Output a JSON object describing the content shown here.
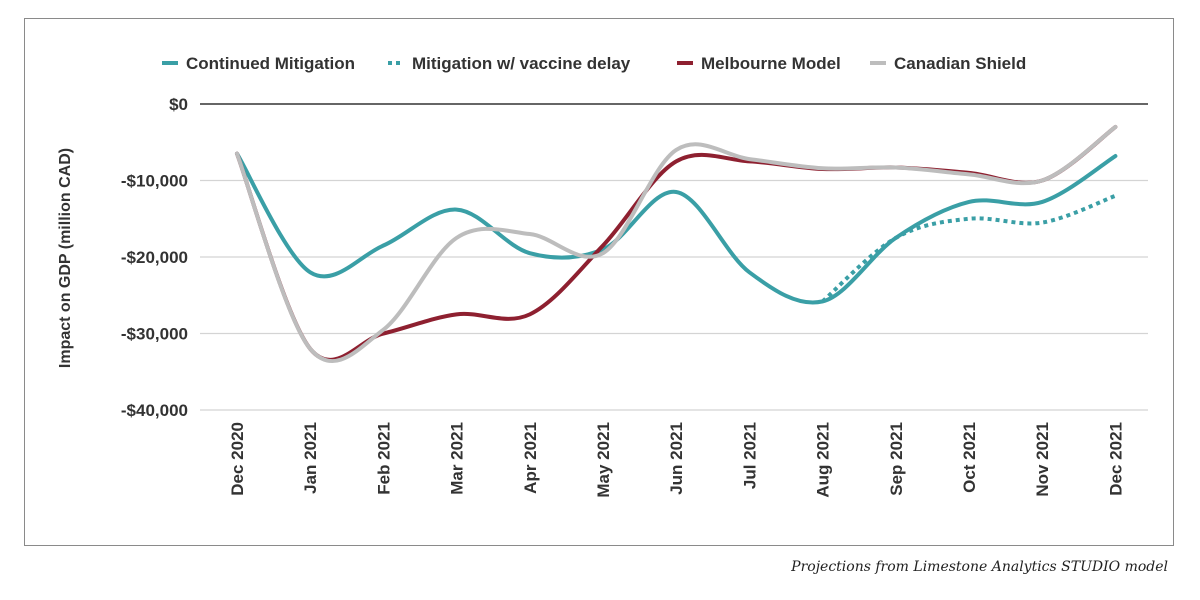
{
  "chart_data": {
    "type": "line",
    "title": "",
    "xlabel": "",
    "ylabel": "Impact on GDP (million CAD)",
    "ylim": [
      -40000,
      0
    ],
    "yticks": [
      0,
      -10000,
      -20000,
      -30000,
      -40000
    ],
    "ytick_labels": [
      "$0",
      "-$10,000",
      "-$20,000",
      "-$30,000",
      "-$40,000"
    ],
    "categories": [
      "Dec 2020",
      "Jan 2021",
      "Feb 2021",
      "Mar 2021",
      "Apr 2021",
      "May 2021",
      "Jun 2021",
      "Jul 2021",
      "Aug 2021",
      "Sep 2021",
      "Oct 2021",
      "Nov 2021",
      "Dec 2021"
    ],
    "legend_position": "top",
    "grid": true,
    "series": [
      {
        "name": "Continued Mitigation",
        "color": "#3a9fa6",
        "style": "solid",
        "values": [
          -6500,
          -22000,
          -18500,
          -13800,
          -19500,
          -19000,
          -11500,
          -22000,
          -25800,
          -17500,
          -12800,
          -12800,
          -6800
        ]
      },
      {
        "name": "Mitigation w/ vaccine delay",
        "color": "#3a9fa6",
        "style": "dotted",
        "values": [
          null,
          null,
          null,
          null,
          null,
          null,
          null,
          null,
          -25800,
          -17500,
          -15000,
          -15500,
          -12000
        ]
      },
      {
        "name": "Melbourne Model",
        "color": "#8e2030",
        "style": "solid",
        "values": [
          -6500,
          -32000,
          -30000,
          -27500,
          -27500,
          -18500,
          -7500,
          -7500,
          -8500,
          -8300,
          -9000,
          -10000,
          -3000
        ]
      },
      {
        "name": "Canadian Shield",
        "color": "#bdbdbd",
        "style": "solid",
        "values": [
          -6500,
          -32000,
          -29500,
          -17500,
          -17000,
          -19500,
          -6000,
          -7200,
          -8400,
          -8300,
          -9200,
          -10000,
          -3000
        ]
      }
    ]
  },
  "caption": "Projections from Limestone Analytics STUDIO model"
}
